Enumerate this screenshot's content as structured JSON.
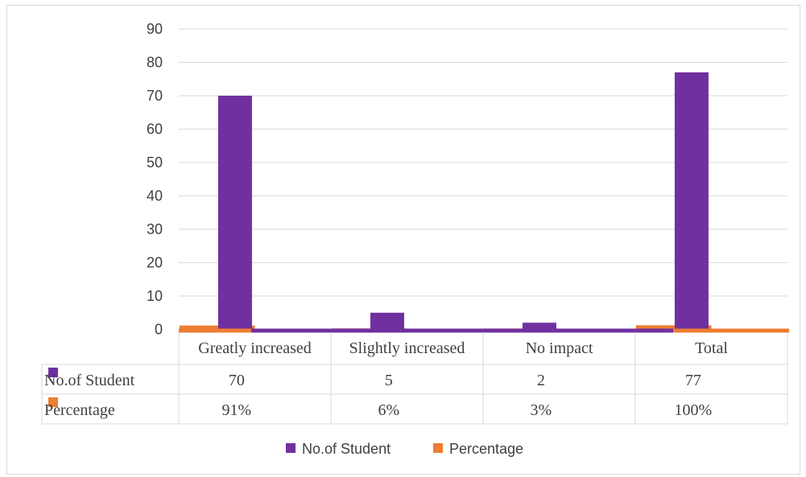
{
  "chart_data": {
    "type": "bar",
    "categories": [
      "Greatly increased",
      "Slightly increased",
      "No impact",
      "Total"
    ],
    "series": [
      {
        "name": "No.of Student",
        "values": [
          70,
          5,
          2,
          77
        ],
        "display": [
          "70",
          "5",
          "2",
          "77"
        ],
        "color": "#7030a0"
      },
      {
        "name": "Percentage",
        "values": [
          0.91,
          0.06,
          0.03,
          1.0
        ],
        "display": [
          "91%",
          "6%",
          "3%",
          "100%"
        ],
        "color": "#ed7d31"
      }
    ],
    "y_ticks": [
      "0",
      "10",
      "20",
      "30",
      "40",
      "50",
      "60",
      "70",
      "80",
      "90"
    ],
    "ylim": [
      0,
      90
    ],
    "grid": true,
    "data_table": true,
    "legend_position": "bottom"
  }
}
